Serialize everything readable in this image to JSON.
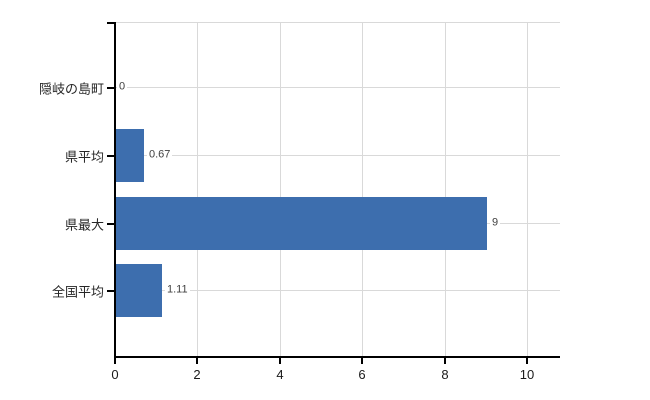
{
  "chart_data": {
    "type": "bar",
    "orientation": "horizontal",
    "title": "",
    "categories": [
      "隠岐の島町",
      "県平均",
      "県最大",
      "全国平均"
    ],
    "values": [
      0,
      0.67,
      9,
      1.11
    ],
    "value_labels": [
      "0",
      "0.67",
      "9",
      "1.11"
    ],
    "x_tick_labels": [
      "0",
      "2",
      "4",
      "6",
      "8",
      "10"
    ],
    "x_tick_values": [
      0,
      2,
      4,
      6,
      8,
      10
    ],
    "xlim": [
      0,
      10.8
    ],
    "grid": true,
    "legend": false,
    "colors": {
      "bar": "#3d6eae",
      "gridline": "#d9d9d9",
      "axis": "#000000",
      "category_text": "#262626",
      "value_text": "#404040",
      "tick_text": "#1a1a1a",
      "background": "#ffffff"
    }
  }
}
